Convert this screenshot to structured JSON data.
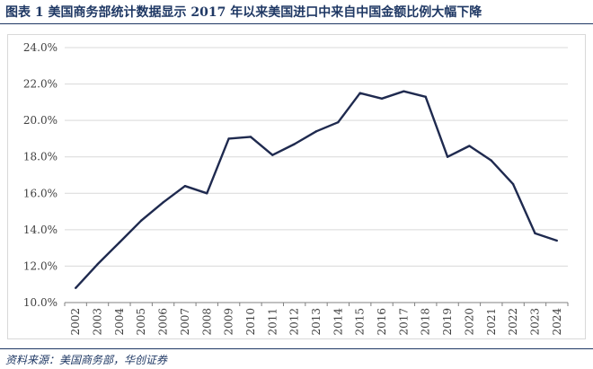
{
  "title": "图表 1  美国商务部统计数据显示 2017 年以来美国进口中来自中国金额比例大幅下降",
  "source": "资料来源：美国商务部，华创证券",
  "colors": {
    "title": "#1f3864",
    "line": "#1f2a4f",
    "grid": "#d9d9d9"
  },
  "chart_data": {
    "type": "line",
    "title": "",
    "xlabel": "",
    "ylabel": "",
    "ylim": [
      10,
      24
    ],
    "yticks": [
      "10.0%",
      "12.0%",
      "14.0%",
      "16.0%",
      "18.0%",
      "20.0%",
      "22.0%",
      "24.0%"
    ],
    "grid": true,
    "categories": [
      "2002",
      "2003",
      "2004",
      "2005",
      "2006",
      "2007",
      "2008",
      "2009",
      "2010",
      "2011",
      "2012",
      "2013",
      "2014",
      "2015",
      "2016",
      "2017",
      "2018",
      "2019",
      "2020",
      "2021",
      "2022",
      "2023",
      "2024"
    ],
    "series": [
      {
        "values": [
          10.8,
          12.1,
          13.3,
          14.5,
          15.5,
          16.4,
          16.0,
          19.0,
          19.1,
          18.1,
          18.7,
          19.4,
          19.9,
          21.5,
          21.2,
          21.6,
          21.3,
          18.0,
          18.6,
          17.8,
          16.5,
          13.8,
          13.4
        ]
      }
    ]
  }
}
